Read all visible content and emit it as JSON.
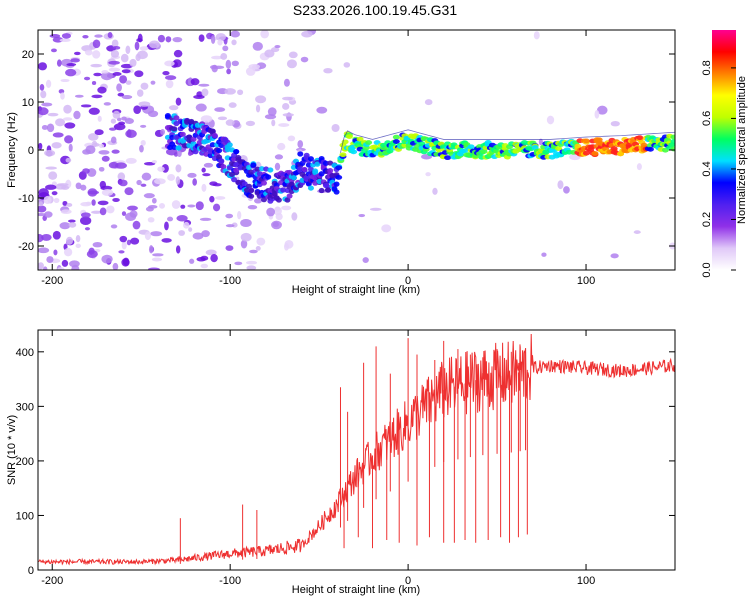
{
  "title": "S233.2026.100.19.45.G31",
  "chart_data": [
    {
      "type": "heatmap",
      "name": "spectrogram",
      "xlabel": "Height of straight line (km)",
      "ylabel": "Frequency (Hz)",
      "xlim": [
        -208,
        150
      ],
      "ylim": [
        -25,
        25
      ],
      "xticks": [
        -200,
        -100,
        0,
        100
      ],
      "yticks": [
        -20,
        -10,
        0,
        10,
        20
      ],
      "colorbar": {
        "label": "Normalized spectral amplitude",
        "range": [
          0,
          0.95
        ],
        "ticks": [
          0.0,
          0.2,
          0.4,
          0.6,
          0.8
        ],
        "colors": [
          "#ffffff",
          "#e0c8f8",
          "#9030e8",
          "#5020f0",
          "#0000ff",
          "#00e0ff",
          "#00ff60",
          "#c0ff00",
          "#ffff00",
          "#ff8000",
          "#ff0000",
          "#ff0090"
        ]
      },
      "trace": {
        "description": "frequency of strongest signal vs height",
        "x": [
          -130,
          -115,
          -100,
          -90,
          -80,
          -70,
          -60,
          -50,
          -40,
          -35,
          -30,
          -20,
          -10,
          0,
          10,
          20,
          40,
          60,
          80,
          100,
          120,
          150
        ],
        "y": [
          4,
          2,
          -2,
          -6,
          -7,
          -8,
          -4,
          -5,
          -6,
          2,
          1,
          0,
          1,
          2,
          1,
          0,
          0,
          0,
          0,
          0.5,
          0.8,
          1.5
        ]
      }
    },
    {
      "type": "line",
      "name": "snr",
      "xlabel": "Height of straight line (km)",
      "ylabel": "SNR (10 * v/v)",
      "xlim": [
        -208,
        150
      ],
      "ylim": [
        0,
        440
      ],
      "xticks": [
        -200,
        -100,
        0,
        100
      ],
      "yticks": [
        0,
        100,
        200,
        300,
        400
      ],
      "color": "#ee3030",
      "envelope": {
        "x": [
          -208,
          -150,
          -130,
          -120,
          -100,
          -80,
          -60,
          -50,
          -40,
          -30,
          -20,
          -10,
          0,
          10,
          20,
          40,
          60,
          70,
          80,
          100,
          120,
          150
        ],
        "base": [
          15,
          15,
          18,
          22,
          30,
          35,
          45,
          80,
          120,
          170,
          210,
          240,
          270,
          300,
          330,
          350,
          360,
          370,
          375,
          370,
          365,
          375
        ]
      },
      "spikes": [
        {
          "x": -128,
          "y": 95
        },
        {
          "x": -93,
          "y": 120
        },
        {
          "x": -85,
          "y": 110
        },
        {
          "x": -38,
          "y": 335
        },
        {
          "x": -34,
          "y": 290
        },
        {
          "x": -25,
          "y": 380
        },
        {
          "x": -18,
          "y": 410
        },
        {
          "x": -10,
          "y": 360
        },
        {
          "x": 0,
          "y": 425
        },
        {
          "x": 5,
          "y": 395
        },
        {
          "x": 15,
          "y": 385
        },
        {
          "x": 20,
          "y": 420
        },
        {
          "x": 28,
          "y": 405
        },
        {
          "x": 35,
          "y": 395
        },
        {
          "x": 42,
          "y": 390
        },
        {
          "x": 50,
          "y": 405
        },
        {
          "x": 58,
          "y": 400
        },
        {
          "x": 63,
          "y": 410
        },
        {
          "x": 66,
          "y": 400
        }
      ],
      "dropouts": [
        {
          "x": -36,
          "y": 40
        },
        {
          "x": -28,
          "y": 60
        },
        {
          "x": -20,
          "y": 40
        },
        {
          "x": -12,
          "y": 55
        },
        {
          "x": -5,
          "y": 50
        },
        {
          "x": 5,
          "y": 45
        },
        {
          "x": 12,
          "y": 60
        },
        {
          "x": 20,
          "y": 50
        },
        {
          "x": 26,
          "y": 50
        },
        {
          "x": 32,
          "y": 55
        },
        {
          "x": 38,
          "y": 50
        },
        {
          "x": 45,
          "y": 55
        },
        {
          "x": 52,
          "y": 60
        },
        {
          "x": 57,
          "y": 50
        },
        {
          "x": 62,
          "y": 60
        },
        {
          "x": 67,
          "y": 65
        }
      ]
    }
  ]
}
